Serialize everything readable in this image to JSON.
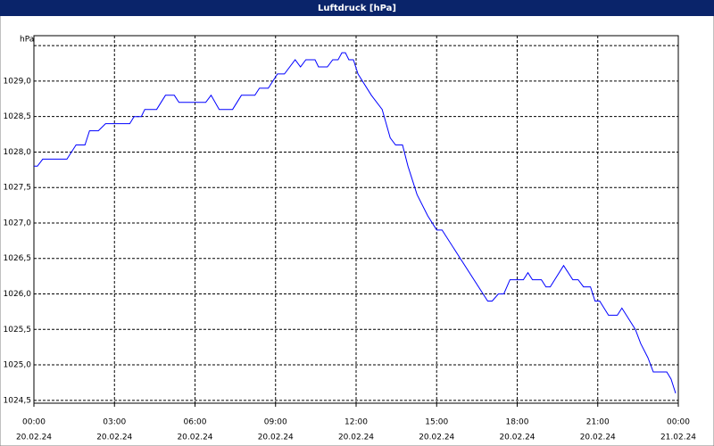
{
  "chart_data": {
    "type": "line",
    "title": "Luftdruck [hPa]",
    "x": [
      0,
      0.13,
      0.33,
      1.23,
      1.57,
      1.9,
      2.07,
      2.4,
      2.67,
      3.57,
      3.73,
      4.0,
      4.13,
      4.57,
      4.9,
      5.23,
      5.4,
      6.4,
      6.6,
      6.9,
      7.4,
      7.73,
      8.23,
      8.4,
      8.73,
      9.07,
      9.33,
      9.73,
      9.93,
      10.13,
      10.47,
      10.6,
      10.93,
      11.13,
      11.33,
      11.47,
      11.6,
      11.73,
      11.9,
      12.07,
      12.57,
      12.97,
      13.27,
      13.47,
      13.73,
      13.93,
      14.27,
      14.67,
      15.0,
      15.2,
      16.9,
      17.07,
      17.3,
      17.5,
      17.73,
      18.23,
      18.4,
      18.57,
      18.9,
      19.07,
      19.23,
      19.73,
      20.07,
      20.27,
      20.47,
      20.73,
      20.9,
      21.07,
      21.4,
      21.73,
      21.9,
      22.4,
      22.6,
      22.87,
      23.07,
      23.57,
      23.73,
      23.9
    ],
    "series": [
      {
        "name": "Luftdruck",
        "color": "#0000ff",
        "values": [
          1027.8,
          1027.8,
          1027.9,
          1027.9,
          1028.1,
          1028.1,
          1028.3,
          1028.3,
          1028.4,
          1028.4,
          1028.5,
          1028.5,
          1028.6,
          1028.6,
          1028.8,
          1028.8,
          1028.7,
          1028.7,
          1028.8,
          1028.6,
          1028.6,
          1028.8,
          1028.8,
          1028.9,
          1028.9,
          1029.1,
          1029.1,
          1029.3,
          1029.2,
          1029.3,
          1029.3,
          1029.2,
          1029.2,
          1029.3,
          1029.3,
          1029.4,
          1029.4,
          1029.3,
          1029.3,
          1029.1,
          1028.8,
          1028.6,
          1028.2,
          1028.1,
          1028.1,
          1027.8,
          1027.4,
          1027.1,
          1026.9,
          1026.9,
          1025.9,
          1025.9,
          1026.0,
          1026.0,
          1026.2,
          1026.2,
          1026.3,
          1026.2,
          1026.2,
          1026.1,
          1026.1,
          1026.4,
          1026.2,
          1026.2,
          1026.1,
          1026.1,
          1025.9,
          1025.9,
          1025.7,
          1025.7,
          1025.8,
          1025.5,
          1025.3,
          1025.1,
          1024.9,
          1024.9,
          1024.8,
          1024.6
        ]
      }
    ],
    "xlim": [
      0,
      24
    ],
    "xticks": [
      {
        "value": 0,
        "label": [
          "00:00",
          "20.02.24"
        ]
      },
      {
        "value": 3,
        "label": [
          "03:00",
          "20.02.24"
        ]
      },
      {
        "value": 6,
        "label": [
          "06:00",
          "20.02.24"
        ]
      },
      {
        "value": 9,
        "label": [
          "09:00",
          "20.02.24"
        ]
      },
      {
        "value": 12,
        "label": [
          "12:00",
          "20.02.24"
        ]
      },
      {
        "value": 15,
        "label": [
          "15:00",
          "20.02.24"
        ]
      },
      {
        "value": 18,
        "label": [
          "18:00",
          "20.02.24"
        ]
      },
      {
        "value": 21,
        "label": [
          "21:00",
          "20.02.24"
        ]
      },
      {
        "value": 24,
        "label": [
          "00:00",
          "21.02.24"
        ]
      }
    ],
    "ylim": [
      1024.46,
      1029.64
    ],
    "yticks": [
      {
        "value": 1024.5,
        "label": "1024,5"
      },
      {
        "value": 1025,
        "label": "1025,0"
      },
      {
        "value": 1025.5,
        "label": "1025,5"
      },
      {
        "value": 1026,
        "label": "1026,0"
      },
      {
        "value": 1026.5,
        "label": "1026,5"
      },
      {
        "value": 1027,
        "label": "1027,0"
      },
      {
        "value": 1027.5,
        "label": "1027,5"
      },
      {
        "value": 1028,
        "label": "1028,0"
      },
      {
        "value": 1028.5,
        "label": "1028,5"
      },
      {
        "value": 1029,
        "label": "1029,0"
      },
      {
        "value": 1029.5,
        "label": "hPa"
      }
    ],
    "grid": true
  }
}
